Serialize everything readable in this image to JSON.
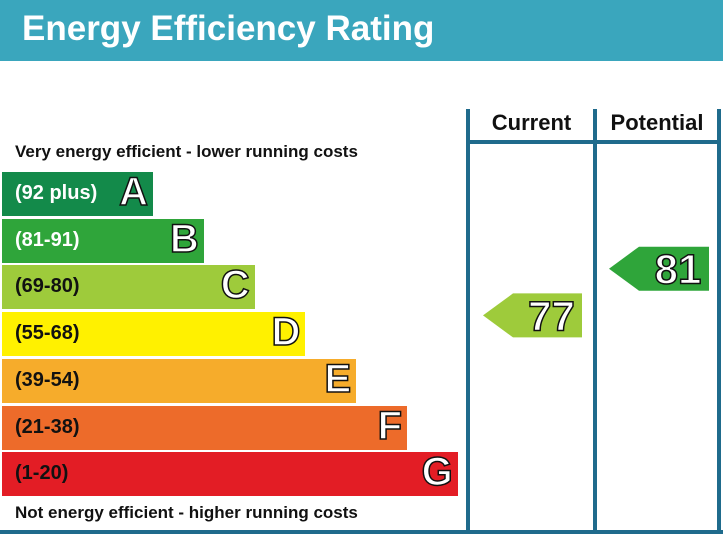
{
  "header": {
    "title": "Energy Efficiency Rating",
    "color": "#3aa6bd"
  },
  "notes": {
    "top": "Very energy efficient - lower running costs",
    "bottom": "Not energy efficient - higher running costs"
  },
  "chart_data": {
    "type": "bar",
    "columns": [
      "Current",
      "Potential"
    ],
    "bands": [
      {
        "letter": "A",
        "range": "(92 plus)",
        "color": "#138a4a",
        "text_color": "#ffffff"
      },
      {
        "letter": "B",
        "range": "(81-91)",
        "color": "#2fa53a",
        "text_color": "#ffffff"
      },
      {
        "letter": "C",
        "range": "(69-80)",
        "color": "#9ecb3b",
        "text_color": "#111111"
      },
      {
        "letter": "D",
        "range": "(55-68)",
        "color": "#fff100",
        "text_color": "#111111"
      },
      {
        "letter": "E",
        "range": "(39-54)",
        "color": "#f6ac2b",
        "text_color": "#111111"
      },
      {
        "letter": "F",
        "range": "(21-38)",
        "color": "#ed6b2a",
        "text_color": "#111111"
      },
      {
        "letter": "G",
        "range": "(1-20)",
        "color": "#e31d25",
        "text_color": "#111111"
      }
    ],
    "ratings": [
      {
        "column": "Current",
        "value": 77,
        "band": "C",
        "color": "#9ecb3b"
      },
      {
        "column": "Potential",
        "value": 81,
        "band": "B",
        "color": "#2fa53a"
      }
    ]
  }
}
